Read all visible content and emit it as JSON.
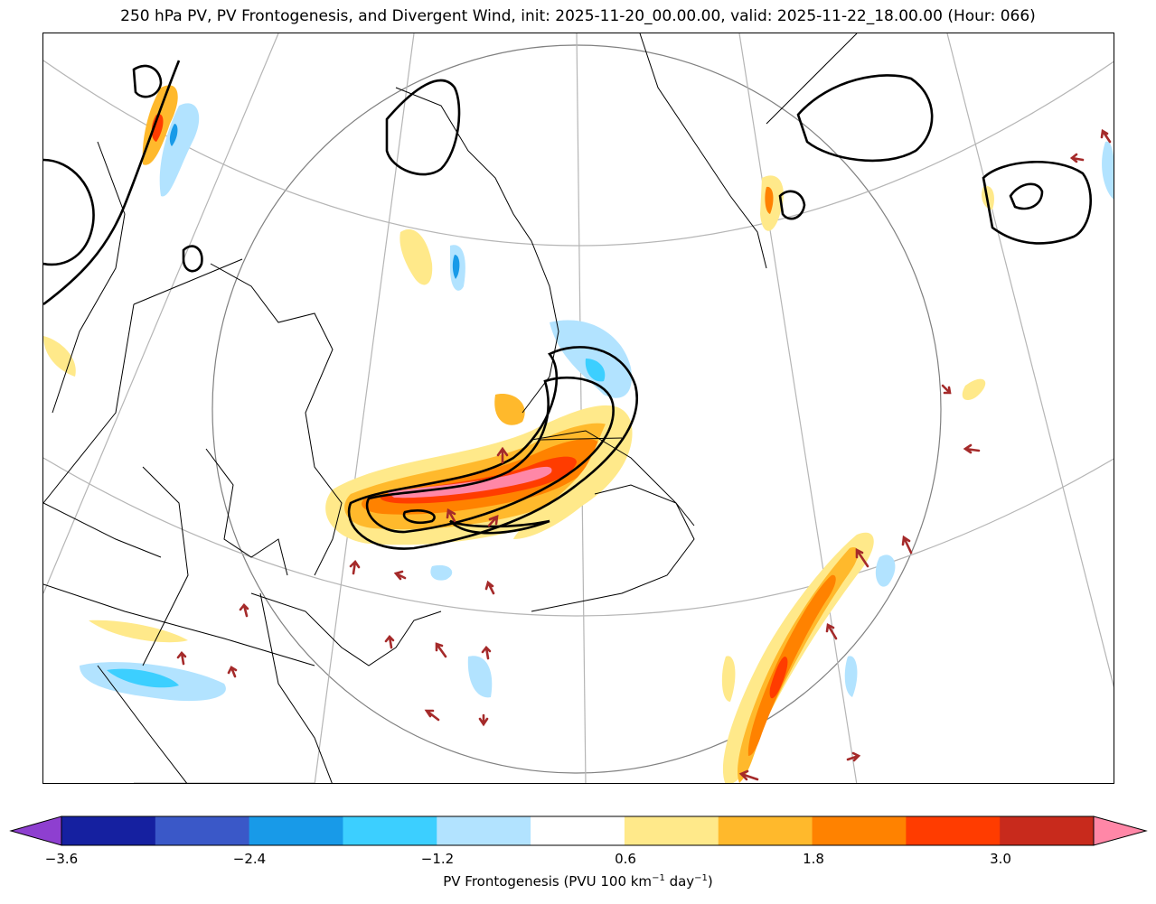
{
  "title": "250 hPa PV, PV Frontogenesis, and Divergent Wind, init: 2025-11-20_00.00.00, valid: 2025-11-22_18.00.00 (Hour: 066)",
  "colorbar": {
    "label_main": "PV Frontogenesis (PVU 100 km",
    "label_exp1": "−1",
    "label_mid": " day",
    "label_exp2": "−1",
    "label_end": ")",
    "ticks": [
      "−3.6",
      "−2.4",
      "−1.2",
      "0.6",
      "1.8",
      "3.0"
    ],
    "colors": [
      "#8e3fd0",
      "#1520a0",
      "#3a58c8",
      "#189ae8",
      "#3ccfff",
      "#b2e3ff",
      "#ffffff",
      "#ffe98a",
      "#ffb92c",
      "#ff8200",
      "#ff3c00",
      "#c82a1c",
      "#ff87a7"
    ]
  },
  "map": {
    "features": [
      "PV contours (2 PVU)",
      "PV frontogenesis shading",
      "divergent wind arrows",
      "coastlines",
      "state and province borders",
      "lat/lon grid"
    ],
    "arrow_color": "#a52a2a"
  }
}
